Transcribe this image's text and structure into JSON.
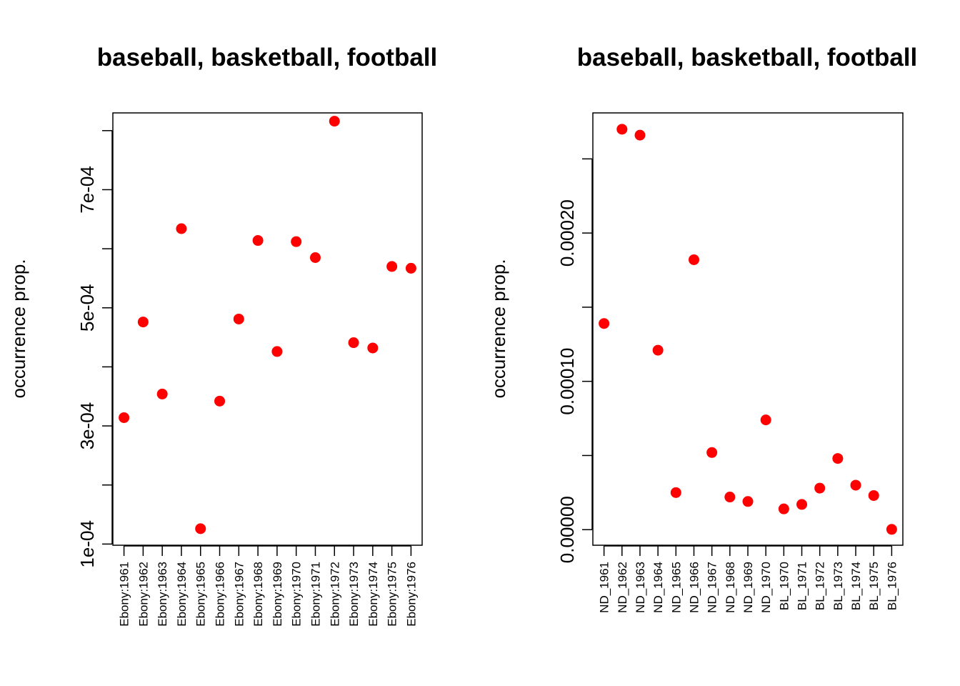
{
  "colors": {
    "point": "#ff0000",
    "axis": "#000000",
    "background": "#ffffff"
  },
  "chart_data": [
    {
      "type": "scatter",
      "title": "baseball, basketball, football",
      "xlabel": "",
      "ylabel": "occurrence prop.",
      "grid": false,
      "ylim": [
        9.8e-05,
        0.00083
      ],
      "yticks": [
        0.0001,
        0.0002,
        0.0003,
        0.0004,
        0.0005,
        0.0006,
        0.0007,
        0.0008
      ],
      "ytick_labels": [
        "1e-04",
        "",
        "3e-04",
        "",
        "5e-04",
        "",
        "7e-04",
        ""
      ],
      "categories": [
        "Ebony:1961",
        "Ebony:1962",
        "Ebony:1963",
        "Ebony:1964",
        "Ebony:1965",
        "Ebony:1966",
        "Ebony:1967",
        "Ebony:1968",
        "Ebony:1969",
        "Ebony:1970",
        "Ebony:1971",
        "Ebony:1972",
        "Ebony:1973",
        "Ebony:1974",
        "Ebony:1975",
        "Ebony:1976"
      ],
      "values": [
        0.000314,
        0.000476,
        0.000354,
        0.000634,
        0.000126,
        0.000342,
        0.000481,
        0.000614,
        0.000426,
        0.000612,
        0.000585,
        0.000816,
        0.000441,
        0.000432,
        0.00057,
        0.000567
      ]
    },
    {
      "type": "scatter",
      "title": "baseball, basketball, football",
      "xlabel": "",
      "ylabel": "occurrence prop.",
      "grid": false,
      "ylim": [
        -1.05e-05,
        0.000281
      ],
      "yticks": [
        0,
        5e-05,
        0.0001,
        0.00015,
        0.0002,
        0.00025
      ],
      "ytick_labels": [
        "0.00000",
        "",
        "0.00010",
        "",
        "0.00020",
        ""
      ],
      "categories": [
        "ND_1961",
        "ND_1962",
        "ND_1963",
        "ND_1964",
        "ND_1965",
        "ND_1966",
        "ND_1967",
        "ND_1968",
        "ND_1969",
        "ND_1970",
        "BL_1970",
        "BL_1971",
        "BL_1972",
        "BL_1973",
        "BL_1974",
        "BL_1975",
        "BL_1976"
      ],
      "values": [
        0.000139,
        0.00027,
        0.000266,
        0.000121,
        2.5e-05,
        0.000182,
        5.2e-05,
        2.2e-05,
        1.9e-05,
        7.4e-05,
        1.4e-05,
        1.7e-05,
        2.8e-05,
        4.8e-05,
        3e-05,
        2.3e-05,
        2e-07
      ]
    }
  ]
}
